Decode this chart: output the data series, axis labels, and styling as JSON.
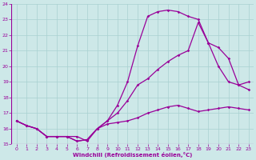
{
  "xlabel": "Windchill (Refroidissement éolien,°C)",
  "bg_color": "#cde8e8",
  "line_color": "#990099",
  "grid_color": "#a8d0d0",
  "xlim_min": -0.5,
  "xlim_max": 23.5,
  "ylim_min": 15,
  "ylim_max": 24,
  "xticks": [
    0,
    1,
    2,
    3,
    4,
    5,
    6,
    7,
    8,
    9,
    10,
    11,
    12,
    13,
    14,
    15,
    16,
    17,
    18,
    19,
    20,
    21,
    22,
    23
  ],
  "yticks": [
    15,
    16,
    17,
    18,
    19,
    20,
    21,
    22,
    23,
    24
  ],
  "line1_x": [
    0,
    1,
    2,
    3,
    4,
    5,
    6,
    7,
    8,
    9,
    10,
    11,
    12,
    13,
    14,
    15,
    16,
    17,
    18,
    19,
    20,
    21,
    22,
    23
  ],
  "line1_y": [
    16.5,
    16.2,
    16.0,
    15.5,
    15.5,
    15.5,
    15.5,
    15.2,
    16.0,
    16.3,
    16.4,
    16.5,
    16.7,
    17.0,
    17.2,
    17.4,
    17.5,
    17.3,
    17.1,
    17.2,
    17.3,
    17.4,
    17.3,
    17.2
  ],
  "line2_x": [
    0,
    1,
    2,
    3,
    4,
    5,
    6,
    7,
    8,
    9,
    10,
    11,
    12,
    13,
    14,
    15,
    16,
    17,
    18,
    19,
    20,
    21,
    22,
    23
  ],
  "line2_y": [
    16.5,
    16.2,
    16.0,
    15.5,
    15.5,
    15.5,
    15.2,
    15.3,
    16.0,
    16.5,
    17.5,
    19.0,
    21.3,
    23.2,
    23.5,
    23.6,
    23.5,
    23.2,
    23.0,
    21.5,
    21.2,
    20.5,
    18.8,
    18.5
  ],
  "line3_x": [
    0,
    1,
    2,
    3,
    4,
    5,
    6,
    7,
    8,
    9,
    10,
    11,
    12,
    13,
    14,
    15,
    16,
    17,
    18,
    19,
    20,
    21,
    22,
    23
  ],
  "line3_y": [
    16.5,
    16.2,
    16.0,
    15.5,
    15.5,
    15.5,
    15.2,
    15.3,
    16.0,
    16.5,
    17.0,
    17.8,
    18.8,
    19.2,
    19.8,
    20.3,
    20.7,
    21.0,
    22.8,
    21.5,
    20.0,
    19.0,
    18.8,
    19.0
  ]
}
